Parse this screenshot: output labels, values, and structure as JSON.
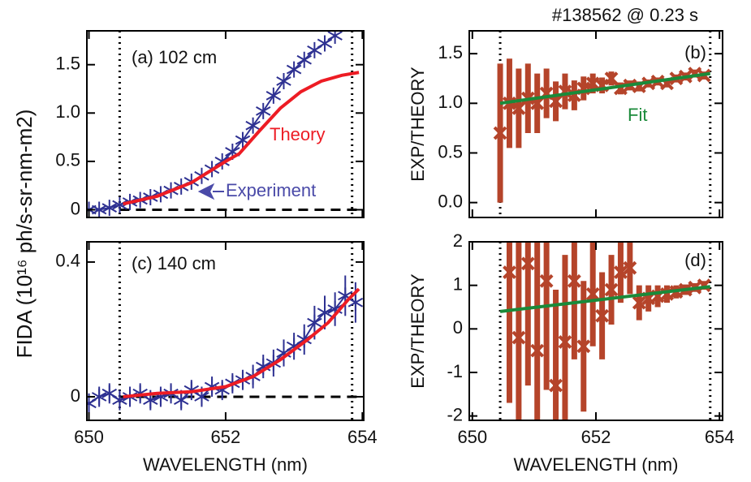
{
  "shot_label": "#138562 @ 0.23 s",
  "chart_data": [
    {
      "type": "line",
      "annotation": "(a) 102 cm",
      "ylabel": "FIDA (10¹⁶ ph/s-sr-nm-m2)",
      "xlim": [
        649.97,
        654.02
      ],
      "ylim": [
        -0.08,
        1.85
      ],
      "xticks": [
        650,
        652,
        654
      ],
      "show_xticklabels": false,
      "yticks": [
        0,
        0.5,
        {
          "value": 1,
          "label": "1.0"
        },
        1.5
      ],
      "vlines": [
        650.45,
        653.85
      ],
      "zero_line": 0,
      "series": [
        {
          "name": "Experiment",
          "color": "#2e3192",
          "marker": "asterisk",
          "connect": true,
          "x": [
            650.0,
            650.15,
            650.3,
            650.45,
            650.6,
            650.75,
            650.9,
            651.05,
            651.2,
            651.35,
            651.5,
            651.65,
            651.8,
            651.95,
            652.1,
            652.25,
            652.4,
            652.55,
            652.7,
            652.85,
            653.0,
            653.15,
            653.3,
            653.45,
            653.6
          ],
          "values": [
            0.0,
            0.0,
            0.02,
            0.05,
            0.08,
            0.1,
            0.13,
            0.16,
            0.2,
            0.24,
            0.29,
            0.35,
            0.42,
            0.5,
            0.6,
            0.72,
            0.87,
            1.02,
            1.18,
            1.33,
            1.45,
            1.55,
            1.65,
            1.72,
            1.8
          ]
        },
        {
          "name": "Theory",
          "color": "#ed1c24",
          "x": [
            650.5,
            651.0,
            651.5,
            652.0,
            652.2,
            652.5,
            652.8,
            653.1,
            653.4,
            653.7,
            653.95
          ],
          "values": [
            0.06,
            0.14,
            0.28,
            0.5,
            0.58,
            0.82,
            1.05,
            1.22,
            1.33,
            1.39,
            1.42
          ]
        }
      ]
    },
    {
      "type": "line",
      "annotation": "(b)",
      "ylabel": "EXP/THEORY",
      "xlim": [
        649.95,
        654.05
      ],
      "ylim": [
        -0.15,
        1.73
      ],
      "xticks": [
        650,
        652,
        654
      ],
      "show_xticklabels": false,
      "yticks": [
        {
          "value": 0,
          "label": "0.0"
        },
        0.5,
        {
          "value": 1,
          "label": "1.0"
        },
        1.5
      ],
      "vlines": [
        650.45,
        653.85
      ],
      "series": [
        {
          "color": "#b5442a",
          "marker": "x",
          "x": [
            650.45,
            650.6,
            650.75,
            650.9,
            651.05,
            651.2,
            651.35,
            651.5,
            651.65,
            651.8,
            651.95,
            652.1,
            652.25,
            652.4,
            652.55,
            652.7,
            652.85,
            653.0,
            653.15,
            653.3,
            653.45,
            653.6,
            653.75
          ],
          "values": [
            0.7,
            1.0,
            0.95,
            1.05,
            1.0,
            1.1,
            1.02,
            1.12,
            1.08,
            1.15,
            1.2,
            1.18,
            1.25,
            1.15,
            1.18,
            1.17,
            1.2,
            1.22,
            1.2,
            1.25,
            1.27,
            1.3,
            1.28
          ],
          "errors": [
            0.7,
            0.45,
            0.4,
            0.35,
            0.3,
            0.25,
            0.2,
            0.18,
            0.15,
            0.12,
            0.1,
            0.08,
            0.07,
            0.06,
            0.05,
            0.05,
            0.04,
            0.04,
            0.04,
            0.04,
            0.04,
            0.04,
            0.04
          ]
        },
        {
          "name": "Fit",
          "color": "#1a8a3a",
          "x": [
            650.45,
            653.85
          ],
          "values": [
            1.0,
            1.3
          ]
        }
      ]
    },
    {
      "type": "line",
      "annotation": "(c) 140 cm",
      "xlabel": "WAVELENGTH (nm)",
      "xlim": [
        649.97,
        654.02
      ],
      "ylim": [
        -0.07,
        0.46
      ],
      "xticks": [
        650,
        652,
        654
      ],
      "show_xticklabels": true,
      "yticks": [
        0,
        0.4
      ],
      "vlines": [
        650.45,
        653.85
      ],
      "zero_line": 0,
      "series": [
        {
          "color": "#2e3192",
          "marker": "asterisk",
          "connect": true,
          "x": [
            650.0,
            650.15,
            650.3,
            650.45,
            650.6,
            650.75,
            650.9,
            651.05,
            651.2,
            651.35,
            651.5,
            651.65,
            651.8,
            651.95,
            652.1,
            652.25,
            652.4,
            652.55,
            652.7,
            652.85,
            653.0,
            653.15,
            653.3,
            653.45,
            653.6,
            653.75,
            653.9
          ],
          "values": [
            -0.02,
            0.0,
            0.01,
            -0.01,
            0.0,
            0.01,
            -0.01,
            0.0,
            0.01,
            -0.01,
            0.02,
            0.0,
            0.03,
            0.02,
            0.04,
            0.05,
            0.06,
            0.09,
            0.1,
            0.13,
            0.15,
            0.17,
            0.22,
            0.25,
            0.26,
            0.3,
            0.28
          ],
          "errors": [
            0.03,
            0.03,
            0.03,
            0.03,
            0.03,
            0.03,
            0.03,
            0.03,
            0.03,
            0.03,
            0.03,
            0.03,
            0.03,
            0.03,
            0.03,
            0.03,
            0.035,
            0.035,
            0.04,
            0.04,
            0.04,
            0.045,
            0.05,
            0.05,
            0.05,
            0.06,
            0.06
          ]
        },
        {
          "color": "#ed1c24",
          "x": [
            650.5,
            651.0,
            651.5,
            652.0,
            652.4,
            652.8,
            653.2,
            653.5,
            653.8,
            653.95
          ],
          "values": [
            0.0,
            0.01,
            0.015,
            0.03,
            0.06,
            0.11,
            0.17,
            0.22,
            0.29,
            0.32
          ]
        }
      ]
    },
    {
      "type": "line",
      "annotation": "(d)",
      "ylabel": "EXP/THEORY",
      "xlabel": "WAVELENGTH (nm)",
      "xlim": [
        649.95,
        654.05
      ],
      "ylim": [
        -2.1,
        2
      ],
      "xticks": [
        650,
        652,
        654
      ],
      "show_xticklabels": true,
      "yticks": [
        -2,
        -1,
        0,
        1,
        2
      ],
      "vlines": [
        650.45,
        653.85
      ],
      "series": [
        {
          "color": "#b5442a",
          "marker": "x",
          "x": [
            650.6,
            650.75,
            650.9,
            651.05,
            651.2,
            651.35,
            651.5,
            651.65,
            651.8,
            651.95,
            652.1,
            652.25,
            652.4,
            652.55,
            652.7,
            652.85,
            653.0,
            653.15,
            653.3,
            653.45,
            653.6,
            653.75
          ],
          "values": [
            1.3,
            -0.2,
            1.5,
            -0.5,
            1.1,
            -1.3,
            -0.3,
            1.1,
            -0.4,
            0.8,
            0.3,
            0.9,
            1.3,
            1.4,
            0.6,
            0.7,
            0.75,
            0.8,
            0.85,
            0.9,
            0.95,
            1.0
          ],
          "errors": [
            3,
            3,
            2.8,
            2.5,
            2.5,
            2.2,
            2,
            1.8,
            1.5,
            1.2,
            1,
            0.8,
            0.7,
            0.6,
            0.4,
            0.3,
            0.25,
            0.2,
            0.15,
            0.12,
            0.1,
            0.1
          ]
        },
        {
          "color": "#1a8a3a",
          "x": [
            650.45,
            653.85
          ],
          "values": [
            0.4,
            0.97
          ]
        }
      ]
    }
  ]
}
